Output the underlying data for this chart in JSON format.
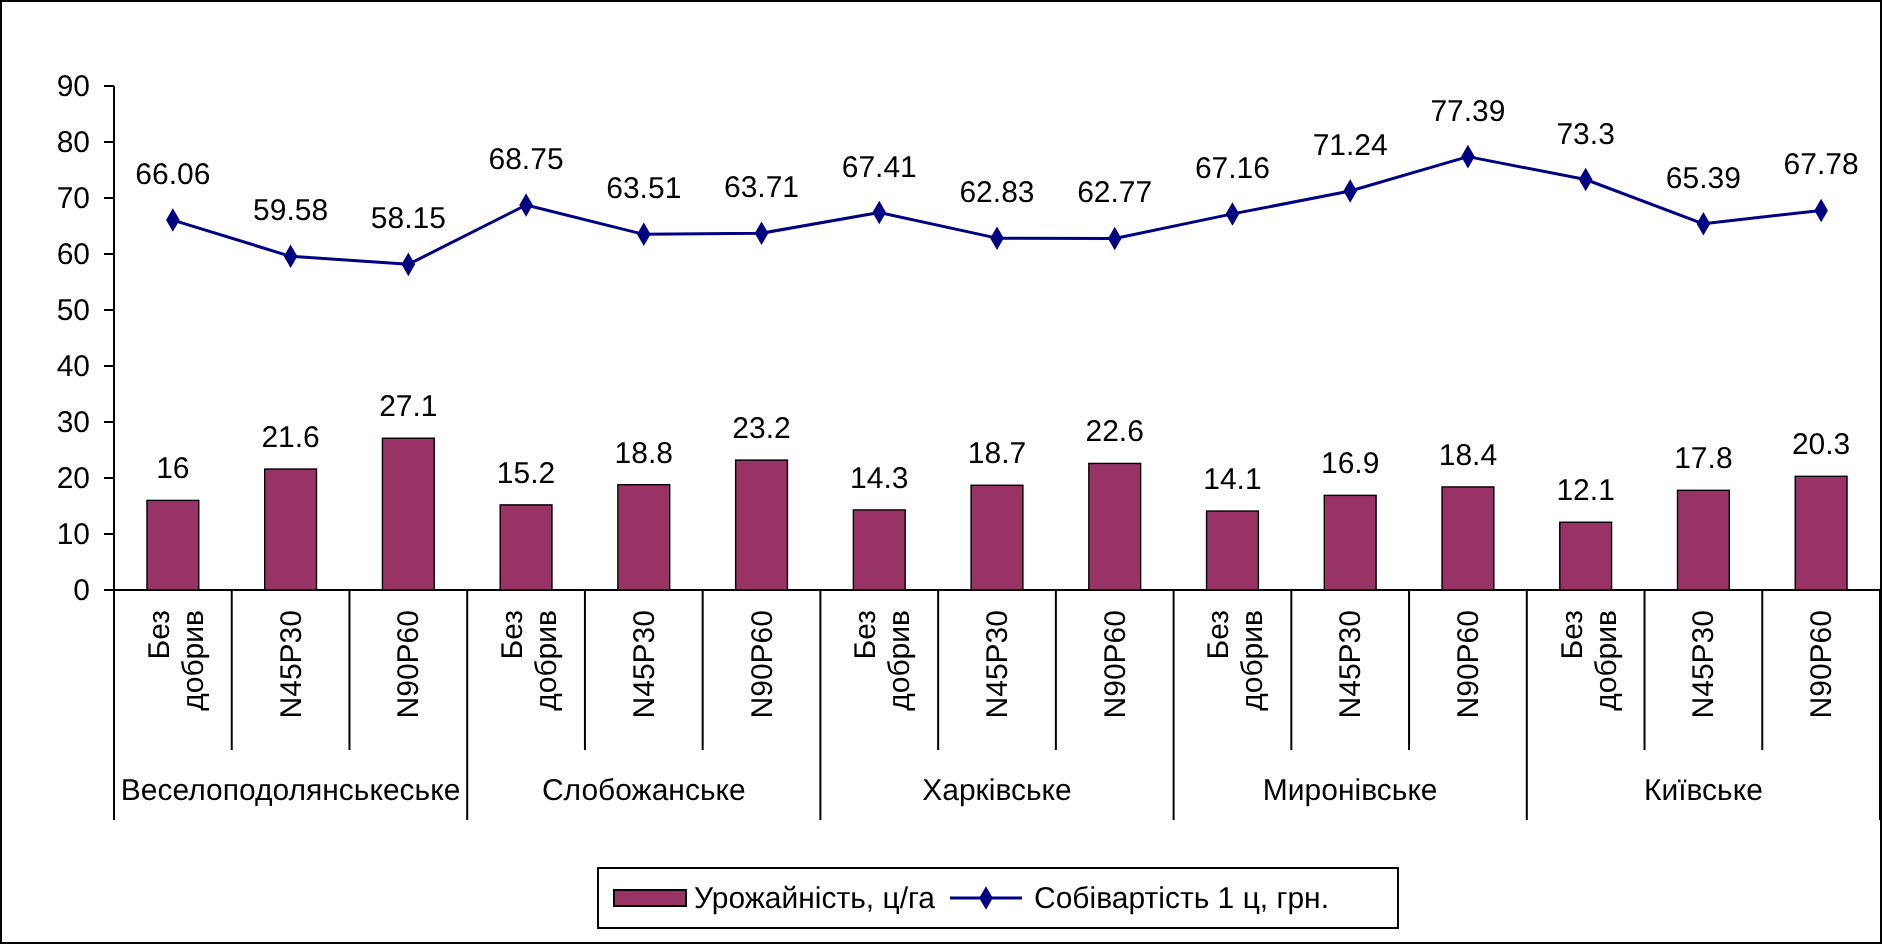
{
  "chart_data": {
    "type": "bar",
    "categories": [
      "Без добрив",
      "N45P30",
      "N90P60",
      "Без добрив",
      "N45P30",
      "N90P60",
      "Без добрив",
      "N45P30",
      "N90P60",
      "Без добрив",
      "N45P30",
      "N90P60",
      "Без добрив",
      "N45P30",
      "N90P60"
    ],
    "series": [
      {
        "name": "Урожайність, ц/га",
        "color": "#993366",
        "values": [
          16,
          21.6,
          27.1,
          15.2,
          18.8,
          23.2,
          14.3,
          18.7,
          22.6,
          14.1,
          16.9,
          18.4,
          12.1,
          17.8,
          20.3
        ]
      },
      {
        "name": "Собівартість 1 ц, грн.",
        "type": "line",
        "color": "#000080",
        "marker": "diamond",
        "values": [
          66.06,
          59.58,
          58.15,
          68.75,
          63.51,
          63.71,
          67.41,
          62.83,
          62.77,
          67.16,
          71.24,
          77.39,
          73.3,
          65.39,
          67.78
        ]
      }
    ],
    "ylim": [
      0,
      90
    ],
    "yticks": [
      0,
      10,
      20,
      30,
      40,
      50,
      60,
      70,
      80,
      90
    ],
    "data_labels": true,
    "legend": "bottom",
    "grid": false,
    "annotations": [
      "Веселоподолянськеське",
      "Слобожанське",
      "Харківське",
      "Миронівське",
      "Київське"
    ]
  }
}
